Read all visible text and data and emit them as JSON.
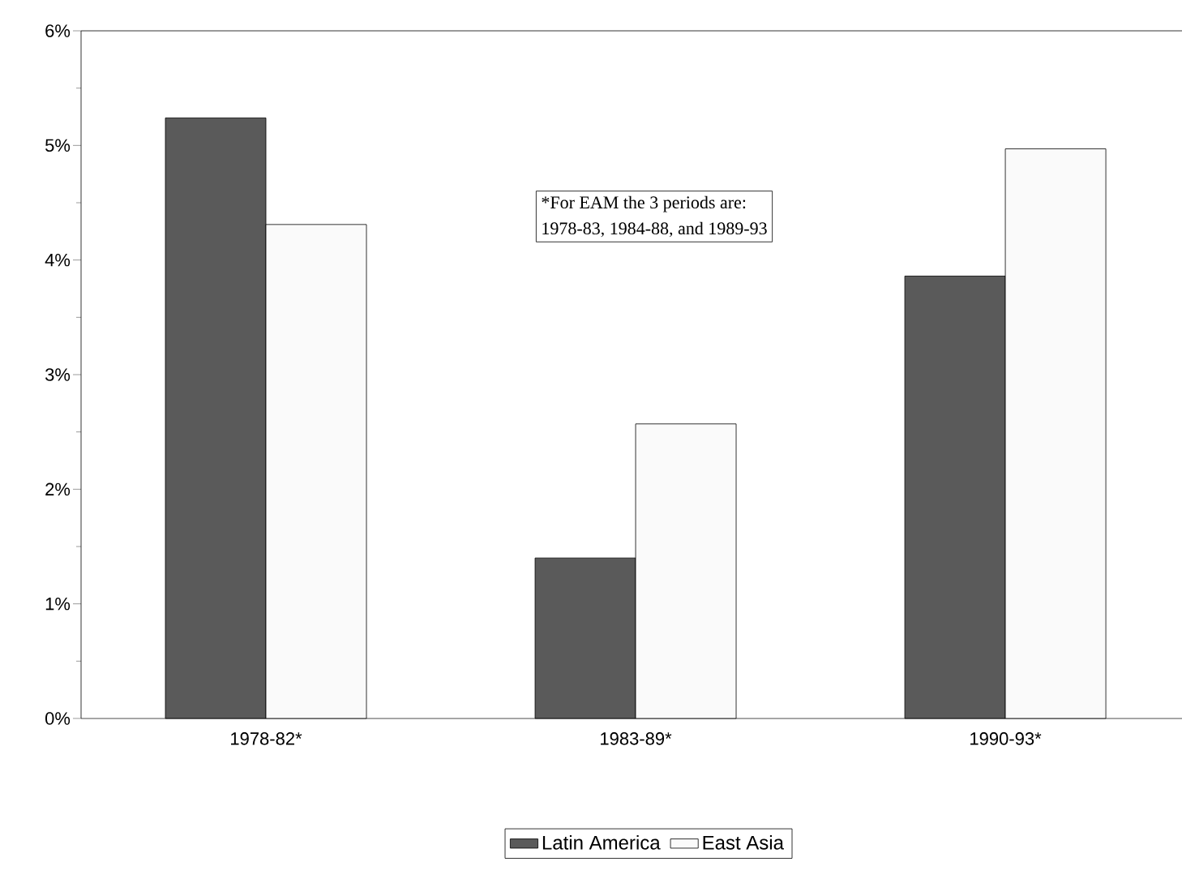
{
  "chart_data": {
    "type": "bar",
    "categories": [
      "1978-82*",
      "1983-89*",
      "1990-93*"
    ],
    "series": [
      {
        "name": "Latin America",
        "color": "#5a5a5a",
        "values": [
          5.24,
          1.4,
          3.86
        ]
      },
      {
        "name": "East Asia",
        "color": "#fafafa",
        "values": [
          4.31,
          2.57,
          4.97
        ]
      }
    ],
    "ylim": [
      0,
      6
    ],
    "yticks": [
      {
        "value": 0,
        "label": "0%"
      },
      {
        "value": 1,
        "label": "1%"
      },
      {
        "value": 2,
        "label": "2%"
      },
      {
        "value": 3,
        "label": "3%"
      },
      {
        "value": 4,
        "label": "4%"
      },
      {
        "value": 5,
        "label": "5%"
      },
      {
        "value": 6,
        "label": "6%"
      }
    ],
    "annotations": [
      "*For EAM the 3 periods are:",
      "1978-83, 1984-88, and 1989-93"
    ],
    "legend": "bottom",
    "grid": false
  }
}
